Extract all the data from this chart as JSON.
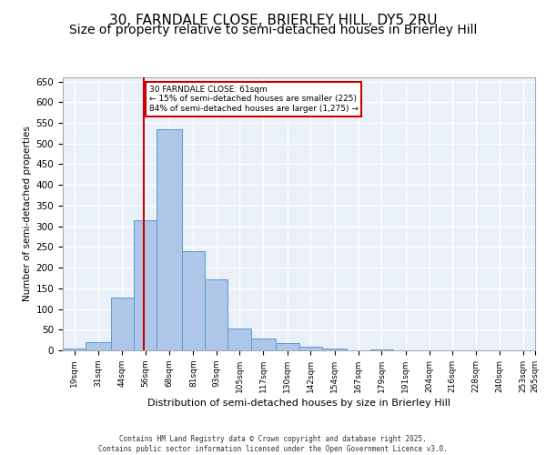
{
  "title1": "30, FARNDALE CLOSE, BRIERLEY HILL, DY5 2RU",
  "title2": "Size of property relative to semi-detached houses in Brierley Hill",
  "xlabel": "Distribution of semi-detached houses by size in Brierley Hill",
  "ylabel": "Number of semi-detached properties",
  "annotation_title": "30 FARNDALE CLOSE: 61sqm",
  "annotation_line1": "← 15% of semi-detached houses are smaller (225)",
  "annotation_line2": "84% of semi-detached houses are larger (1,275) →",
  "footer1": "Contains HM Land Registry data © Crown copyright and database right 2025.",
  "footer2": "Contains public sector information licensed under the Open Government Licence v3.0.",
  "property_size": 61,
  "bin_left_edges": [
    19,
    31,
    44,
    56,
    68,
    81,
    93,
    105,
    117,
    130,
    142,
    154,
    167,
    179,
    191,
    204,
    216,
    228,
    240,
    253
  ],
  "bin_labels": [
    "19sqm",
    "31sqm",
    "44sqm",
    "56sqm",
    "68sqm",
    "81sqm",
    "93sqm",
    "105sqm",
    "117sqm",
    "130sqm",
    "142sqm",
    "154sqm",
    "167sqm",
    "179sqm",
    "191sqm",
    "204sqm",
    "216sqm",
    "228sqm",
    "240sqm",
    "253sqm",
    "265sqm"
  ],
  "counts": [
    5,
    20,
    128,
    315,
    535,
    240,
    172,
    53,
    28,
    18,
    8,
    5,
    1,
    2,
    0,
    0,
    1,
    0,
    0,
    1
  ],
  "bar_color": "#aec6e8",
  "bar_edge_color": "#5b9bd5",
  "vline_color": "#cc0000",
  "vline_x": 61,
  "annotation_box_color": "#cc0000",
  "bg_color": "#eaf0f8",
  "grid_color": "#ffffff",
  "title1_fontsize": 11,
  "title2_fontsize": 10,
  "xlim": [
    19,
    265
  ],
  "ylim": [
    0,
    660
  ],
  "yticks": [
    0,
    50,
    100,
    150,
    200,
    250,
    300,
    350,
    400,
    450,
    500,
    550,
    600,
    650
  ]
}
